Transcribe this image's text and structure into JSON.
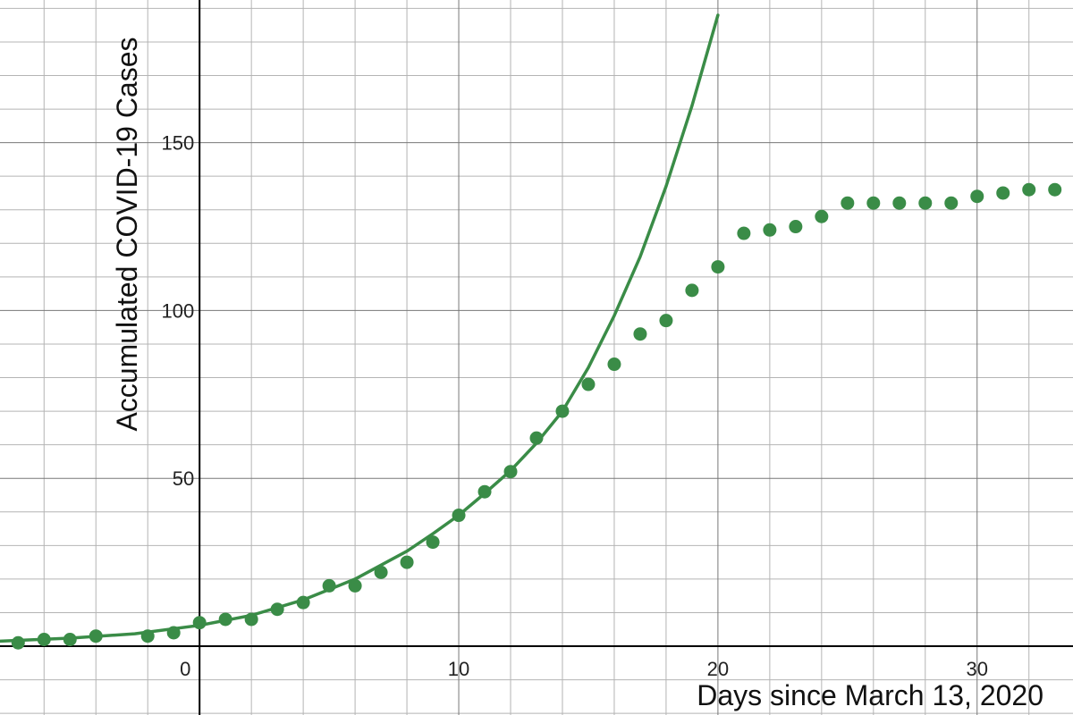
{
  "chart_data": {
    "type": "scatter",
    "xlabel": "Days since March 13, 2020",
    "ylabel": "Accumulated COVID-19 Cases",
    "xlim": [
      -7.7,
      33.7
    ],
    "ylim": [
      -20.5,
      192.5
    ],
    "x_major_ticks": [
      0,
      10,
      20,
      30
    ],
    "y_major_ticks": [
      50,
      100,
      150
    ],
    "x_tick_labels": [
      "0",
      "10",
      "20",
      "30"
    ],
    "y_tick_labels": [
      "50",
      "100",
      "150"
    ],
    "grid": true,
    "legend": "none",
    "colors": {
      "series": "#3a8c47",
      "grid_minor": "#b4b4b4",
      "grid_major": "#787878",
      "axis": "#000000"
    },
    "series": [
      {
        "type": "scatter",
        "x": [
          -7,
          -6,
          -5,
          -4,
          -2,
          -1,
          0,
          1,
          2,
          3,
          4,
          5,
          6,
          7,
          8,
          9,
          10,
          11,
          12,
          13,
          14,
          15,
          16,
          17,
          18,
          19,
          20,
          21,
          22,
          23,
          24,
          25,
          26,
          27,
          28,
          29,
          30,
          31,
          32,
          33
        ],
        "y": [
          1,
          2,
          2,
          3,
          3,
          4,
          7,
          8,
          8,
          11,
          13,
          18,
          18,
          22,
          25,
          31,
          39,
          46,
          52,
          62,
          70,
          78,
          84,
          93,
          97,
          106,
          113,
          123,
          124,
          125,
          128,
          132,
          132,
          132,
          132,
          132,
          134,
          135,
          136,
          136
        ]
      },
      {
        "type": "line",
        "x": [
          -7.7,
          -5,
          -2.5,
          0,
          2,
          4,
          6,
          8,
          9,
          10,
          11,
          12,
          13,
          14,
          15,
          16,
          17,
          18,
          19,
          20
        ],
        "y": [
          1.5,
          2.4,
          3.7,
          6.2,
          9.2,
          13.8,
          20.0,
          28.3,
          33.5,
          39.0,
          45.5,
          52.3,
          60.5,
          70.0,
          83.0,
          98.5,
          116.0,
          137.0,
          161.0,
          188.0
        ]
      }
    ]
  }
}
